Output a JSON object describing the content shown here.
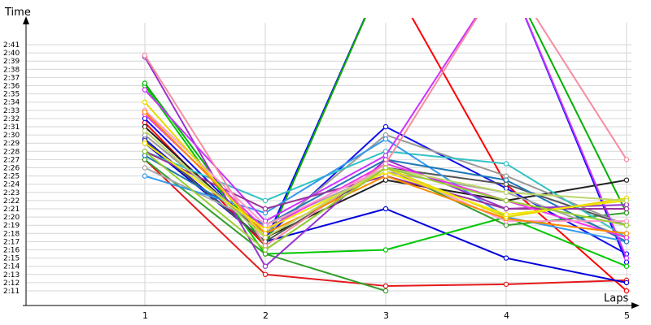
{
  "chart_data": {
    "type": "line",
    "ylabel": "Time",
    "xlabel": "Laps",
    "x": [
      1,
      2,
      3,
      4,
      5
    ],
    "x_tick_labels": [
      "1",
      "2",
      "3",
      "4",
      "5"
    ],
    "y_tick_labels": [
      "2:11",
      "2:12",
      "2:13",
      "2:14",
      "2:15",
      "2:16",
      "2:17",
      "2:18",
      "2:19",
      "2:20",
      "2:21",
      "2:22",
      "2:23",
      "2:24",
      "2:25",
      "2:26",
      "2:27",
      "2:28",
      "2:29",
      "2:30",
      "2:31",
      "2:32",
      "2:33",
      "2:34",
      "2:35",
      "2:36",
      "2:37",
      "2:38",
      "2:39",
      "2:40",
      "2:41"
    ],
    "ylim": [
      "2:11",
      "2:41"
    ],
    "grid": true,
    "series": [
      {
        "color": "#e41a1c",
        "values": [
          "2:27",
          "2:13",
          "2:11.6",
          "2:11.8",
          "2:12.3"
        ]
      },
      {
        "color": "#ff0000",
        "values": [
          "2:31.5",
          "2:16.5",
          "2:50",
          "2:24",
          "2:11"
        ]
      },
      {
        "color": "#0000dd",
        "values": [
          "2:29",
          "2:17",
          "2:21",
          "2:15",
          "2:12"
        ]
      },
      {
        "color": "#1010ee",
        "values": [
          "2:32",
          "2:17.5",
          "2:31",
          "2:23.5",
          "2:15.5"
        ]
      },
      {
        "color": "#0a0aff",
        "values": [
          "2:29.5",
          "2:17",
          "2:50",
          "2:50",
          "2:14.5"
        ]
      },
      {
        "color": "#00c800",
        "values": [
          "2:36",
          "2:15.5",
          "2:16",
          "2:20",
          "2:14"
        ]
      },
      {
        "color": "#00b000",
        "values": [
          "2:36.3",
          "2:16.5",
          "2:50",
          "2:50",
          "2:20.5"
        ]
      },
      {
        "color": "#33a02c",
        "values": [
          "2:27",
          "2:15.5",
          "2:11",
          "",
          ""
        ]
      },
      {
        "color": "#33a02c",
        "values": [
          "",
          "2:16",
          "2:26",
          "2:19",
          "2:20.5"
        ]
      },
      {
        "color": "#222222",
        "values": [
          "2:31",
          "2:17.5",
          "2:24.5",
          "2:22",
          "2:24.5"
        ]
      },
      {
        "color": "#555555",
        "values": [
          "2:29.3",
          "2:17",
          "2:26",
          "2:24",
          "2:19"
        ]
      },
      {
        "color": "#999999",
        "values": [
          "2:30",
          "2:18",
          "2:30",
          "2:25",
          "2:19"
        ]
      },
      {
        "color": "#a6a6a6",
        "values": [
          "2:26",
          "2:19",
          "2:25.5",
          "2:23",
          "2:17.5"
        ]
      },
      {
        "color": "#33c3c3",
        "values": [
          "2:28",
          "2:22",
          "2:28",
          "2:26.5",
          "2:17.5"
        ]
      },
      {
        "color": "#3399ee",
        "values": [
          "2:25",
          "2:20.5",
          "2:29.5",
          "2:20",
          "2:17"
        ]
      },
      {
        "color": "#1f78b4",
        "values": [
          "2:27.5",
          "2:19",
          "2:27",
          "2:24.5",
          "2:17"
        ]
      },
      {
        "color": "#9933cc",
        "values": [
          "2:39.5",
          "2:14",
          "2:27",
          "2:21",
          "2:21.5"
        ]
      },
      {
        "color": "#cc33ff",
        "values": [
          "2:35.5",
          "2:19.5",
          "2:27.5",
          "2:50",
          "2:15"
        ]
      },
      {
        "color": "#993399",
        "values": [
          "2:28",
          "2:21",
          "2:25",
          "2:21",
          "2:21"
        ]
      },
      {
        "color": "#ee33ee",
        "values": [
          "2:32.5",
          "2:18.5",
          "2:26.5",
          "2:22",
          "2:17.5"
        ]
      },
      {
        "color": "#f58ca0",
        "values": [
          "2:39.7",
          "2:16.5",
          "2:26.5",
          "2:50",
          "2:27"
        ]
      },
      {
        "color": "#ff99cc",
        "values": [
          "2:33",
          "2:19",
          "2:26",
          "2:19.5",
          "2:19.5"
        ]
      },
      {
        "color": "#ff8c00",
        "values": [
          "2:32.8",
          "2:18",
          "2:25",
          "2:19.8",
          "2:18"
        ]
      },
      {
        "color": "#e6d800",
        "values": [
          "2:34",
          "2:17.5",
          "2:26",
          "2:20",
          "2:22.3"
        ]
      },
      {
        "color": "#f2e600",
        "values": [
          "2:29",
          "2:18.5",
          "2:25.5",
          "2:20.3",
          "2:22"
        ]
      },
      {
        "color": "#bdd66b",
        "values": [
          "2:30.5",
          "2:17.5",
          "2:26",
          "2:23",
          "2:22"
        ]
      },
      {
        "color": "#9acd32",
        "values": [
          "2:28",
          "2:16",
          "2:26",
          "2:22",
          "2:19"
        ]
      }
    ]
  }
}
